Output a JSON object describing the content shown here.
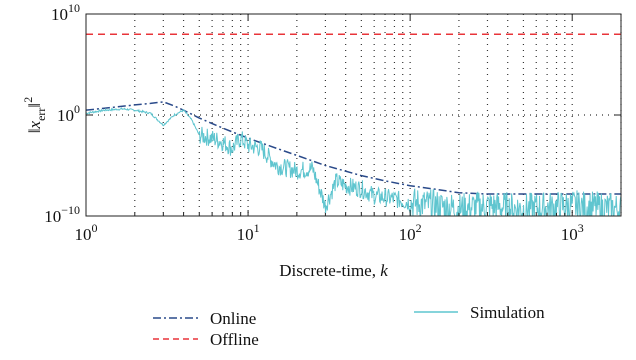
{
  "chart_data": {
    "type": "line",
    "xscale": "log",
    "yscale": "log",
    "xlim": [
      1,
      2000
    ],
    "ylim": [
      1e-10,
      10000000000.0
    ],
    "xlabel_prefix": "Discrete-time, ",
    "xlabel_var": "k",
    "ylabel": "||x_err||^2",
    "ylabel_parts": {
      "x": "x",
      "sub": "err",
      "sup": "2"
    },
    "x_ticks": [
      {
        "value": 1,
        "base": "10",
        "exp": "0"
      },
      {
        "value": 10,
        "base": "10",
        "exp": "1"
      },
      {
        "value": 100,
        "base": "10",
        "exp": "2"
      },
      {
        "value": 1000,
        "base": "10",
        "exp": "3"
      }
    ],
    "y_ticks": [
      {
        "value": 1e-10,
        "base": "10",
        "exp": "−10"
      },
      {
        "value": 1,
        "base": "10",
        "exp": "0"
      },
      {
        "value": 10000000000.0,
        "base": "10",
        "exp": "10"
      }
    ],
    "grid": true,
    "legend_placement": "bottom",
    "series": [
      {
        "name": "Online",
        "style": "dashdot",
        "color": "#2a4a8a",
        "points": [
          [
            1,
            3
          ],
          [
            1.5,
            6
          ],
          [
            2,
            10
          ],
          [
            2.5,
            14
          ],
          [
            3,
            20
          ],
          [
            3.5,
            8
          ],
          [
            4,
            3
          ],
          [
            5,
            0.5
          ],
          [
            7,
            0.05
          ],
          [
            10,
            0.005
          ],
          [
            15,
            0.0005
          ],
          [
            20,
            0.0001
          ],
          [
            30,
            1e-05
          ],
          [
            50,
            1e-06
          ],
          [
            70,
            3e-07
          ],
          [
            100,
            1e-07
          ],
          [
            150,
            4e-08
          ],
          [
            200,
            2e-08
          ],
          [
            300,
            1.5e-08
          ],
          [
            500,
            1.5e-08
          ],
          [
            1000,
            1.5e-08
          ],
          [
            2000,
            1.5e-08
          ]
        ]
      },
      {
        "name": "Offline",
        "style": "dashed",
        "color": "#e8343a",
        "points": [
          [
            1,
            100000000.0
          ],
          [
            2000,
            100000000.0
          ]
        ]
      },
      {
        "name": "Simulation",
        "style": "solid",
        "color": "#5fc5cf",
        "points": [
          [
            1,
            1.5
          ],
          [
            1.3,
            3
          ],
          [
            1.7,
            4
          ],
          [
            2,
            3
          ],
          [
            2.5,
            1.5
          ],
          [
            3,
            0.1
          ],
          [
            3.5,
            1
          ],
          [
            4,
            3
          ],
          [
            4.5,
            0.3
          ],
          [
            5,
            0.01
          ],
          [
            6,
            0.005
          ],
          [
            7,
            0.002
          ],
          [
            8,
            0.0005
          ],
          [
            9,
            0.005
          ],
          [
            10,
            0.001
          ],
          [
            12,
            0.0005
          ],
          [
            15,
            1e-05
          ],
          [
            20,
            3e-06
          ],
          [
            25,
            5e-06
          ],
          [
            30,
            1e-09
          ],
          [
            35,
            3e-07
          ],
          [
            40,
            1e-07
          ],
          [
            50,
            5e-08
          ],
          [
            60,
            1e-08
          ],
          [
            80,
            5e-09
          ],
          [
            100,
            2e-09
          ],
          [
            150,
            1e-09
          ],
          [
            200,
            5e-10
          ],
          [
            300,
            1e-09
          ],
          [
            500,
            5e-10
          ],
          [
            1000,
            1e-09
          ],
          [
            2000,
            5e-10
          ]
        ],
        "noise": true
      }
    ]
  },
  "legend": {
    "online_label": "Online",
    "offline_label": "Offline",
    "simulation_label": "Simulation"
  }
}
